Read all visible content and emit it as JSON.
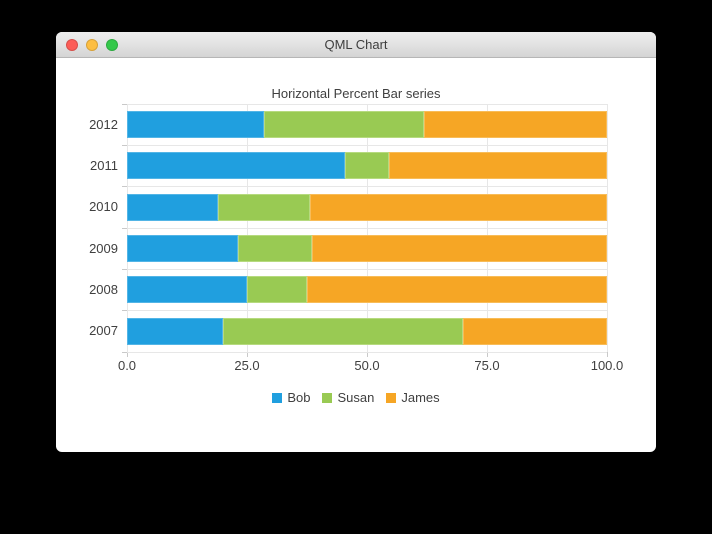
{
  "window": {
    "title": "QML Chart",
    "traffic_lights": [
      {
        "name": "close",
        "color": "#fc5d57"
      },
      {
        "name": "minimize",
        "color": "#fdbe41"
      },
      {
        "name": "zoom",
        "color": "#34c84a"
      }
    ]
  },
  "chart_data": {
    "type": "bar",
    "orientation": "horizontal",
    "normalized": "percent",
    "title": "Horizontal Percent Bar series",
    "categories": [
      "2012",
      "2011",
      "2010",
      "2009",
      "2008",
      "2007"
    ],
    "series": [
      {
        "name": "Bob",
        "color": "#209fdf",
        "highlight": "#53b5e6",
        "values": [
          6,
          5,
          4,
          3,
          2,
          2
        ]
      },
      {
        "name": "Susan",
        "color": "#99ca53",
        "highlight": "#b6da7f",
        "values": [
          7,
          1,
          4,
          2,
          1,
          5
        ]
      },
      {
        "name": "James",
        "color": "#f6a625",
        "highlight": "#f8bc58",
        "values": [
          8,
          5,
          13,
          8,
          5,
          3
        ]
      }
    ],
    "x_ticks": [
      "0.0",
      "25.0",
      "50.0",
      "75.0",
      "100.0"
    ],
    "x_range": [
      0,
      100
    ],
    "grid": true,
    "legend_position": "bottom"
  },
  "colors": {
    "grid": "#e7e7e7",
    "axis_tick": "#c9c9c9",
    "text": "#404040",
    "background": "#ffffff"
  }
}
